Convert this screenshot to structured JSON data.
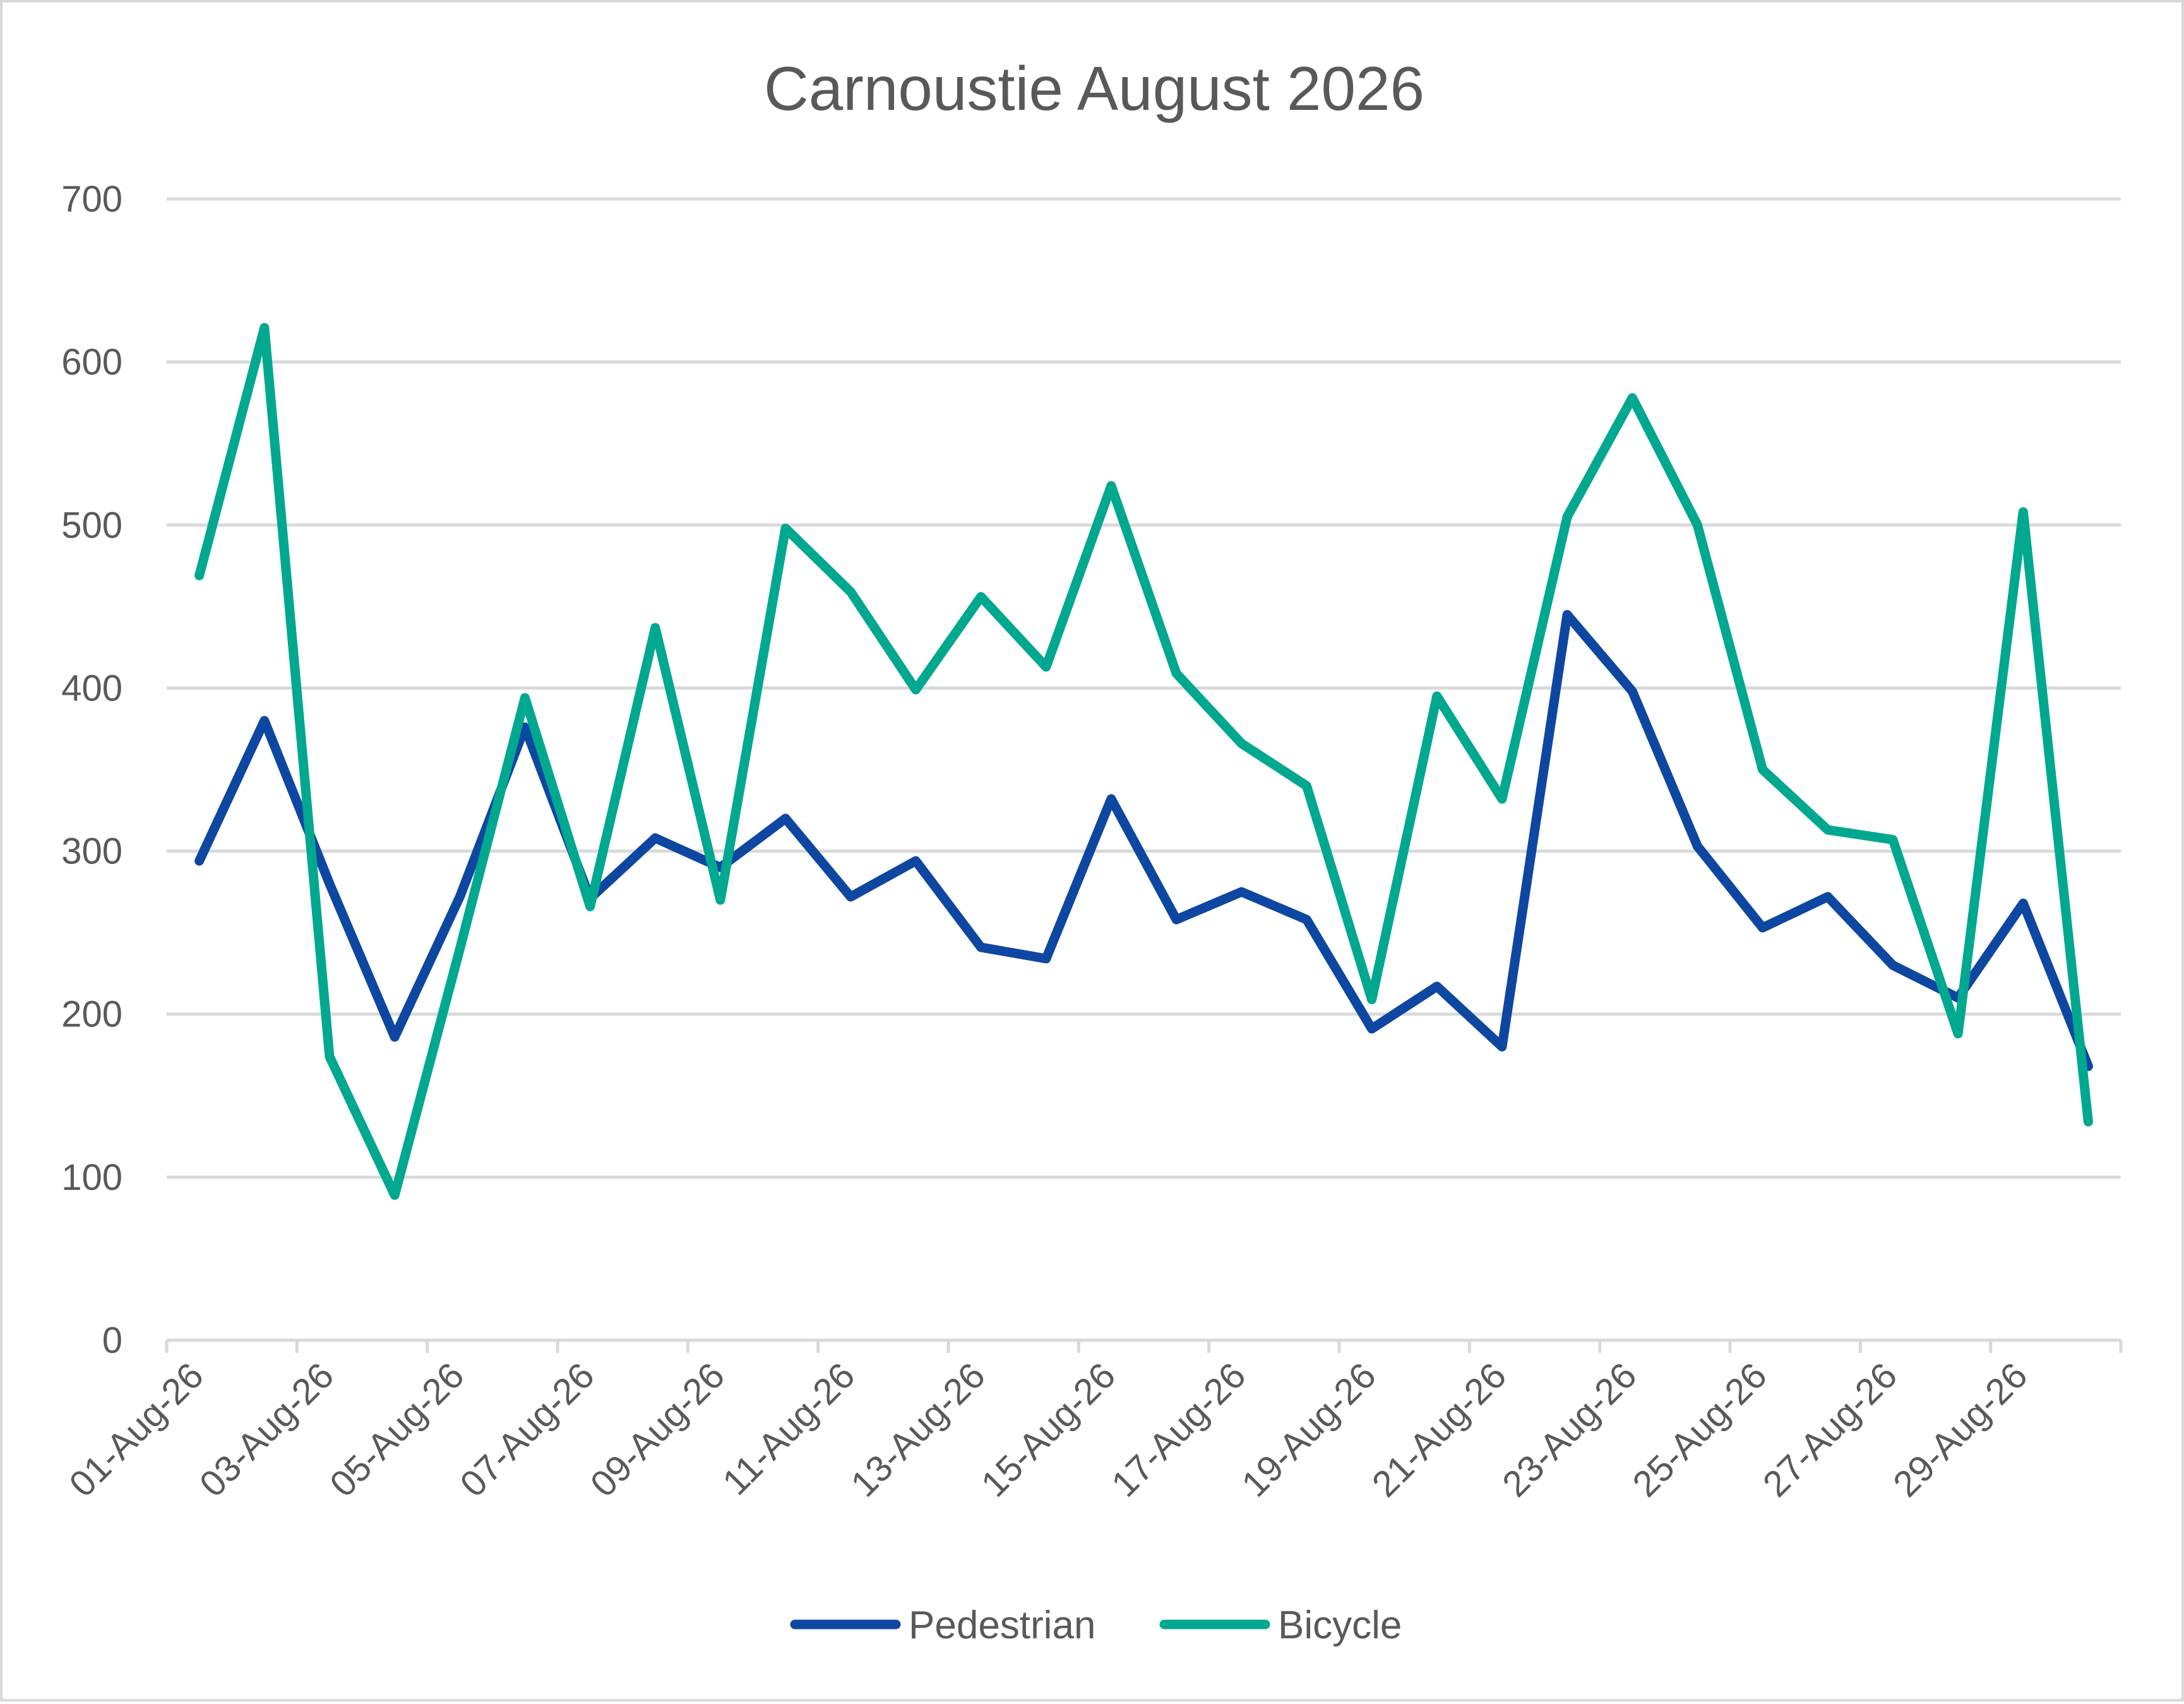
{
  "chart_data": {
    "type": "line",
    "title": "Carnoustie August 2026",
    "xlabel": "",
    "ylabel": "",
    "ylim": [
      0,
      700
    ],
    "yticks": [
      "0",
      "100",
      "200",
      "300",
      "400",
      "500",
      "600",
      "700"
    ],
    "x": [
      "01-Aug-26",
      "02-Aug-26",
      "03-Aug-26",
      "04-Aug-26",
      "05-Aug-26",
      "06-Aug-26",
      "07-Aug-26",
      "08-Aug-26",
      "09-Aug-26",
      "10-Aug-26",
      "11-Aug-26",
      "12-Aug-26",
      "13-Aug-26",
      "14-Aug-26",
      "15-Aug-26",
      "16-Aug-26",
      "17-Aug-26",
      "18-Aug-26",
      "19-Aug-26",
      "20-Aug-26",
      "21-Aug-26",
      "22-Aug-26",
      "23-Aug-26",
      "24-Aug-26",
      "25-Aug-26",
      "26-Aug-26",
      "27-Aug-26",
      "28-Aug-26",
      "29-Aug-26",
      "30-Aug-26"
    ],
    "xtick_labels": [
      "01-Aug-26",
      "03-Aug-26",
      "05-Aug-26",
      "07-Aug-26",
      "09-Aug-26",
      "11-Aug-26",
      "13-Aug-26",
      "15-Aug-26",
      "17-Aug-26",
      "19-Aug-26",
      "21-Aug-26",
      "23-Aug-26",
      "25-Aug-26",
      "27-Aug-26",
      "29-Aug-26"
    ],
    "grid": true,
    "legend_position": "bottom",
    "series": [
      {
        "name": "Pedestrian",
        "color": "#0e47a1",
        "values": [
          294,
          380,
          280,
          186,
          272,
          376,
          271,
          308,
          290,
          320,
          272,
          294,
          241,
          234,
          332,
          258,
          275,
          258,
          191,
          217,
          180,
          445,
          398,
          303,
          253,
          272,
          230,
          210,
          268,
          168
        ]
      },
      {
        "name": "Bicycle",
        "color": "#00a88f",
        "values": [
          469,
          621,
          174,
          89,
          240,
          394,
          266,
          437,
          270,
          498,
          459,
          399,
          456,
          413,
          524,
          409,
          366,
          340,
          209,
          395,
          332,
          505,
          578,
          500,
          350,
          313,
          307,
          188,
          508,
          134
        ]
      }
    ]
  }
}
